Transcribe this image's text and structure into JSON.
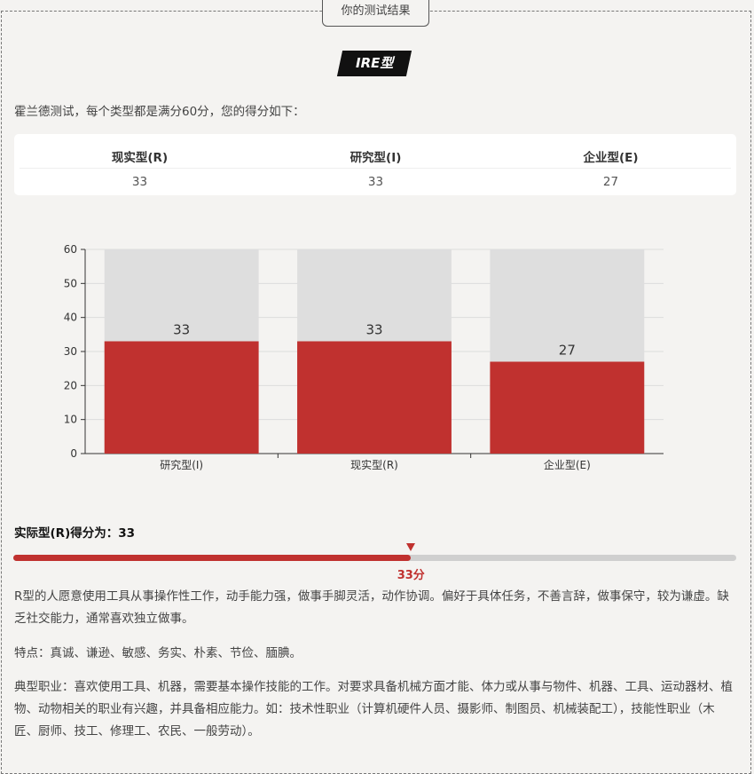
{
  "header": {
    "tab_label": "你的测试结果",
    "type_badge": "IRE型"
  },
  "intro": "霍兰德测试，每个类型都是满分60分，您的得分如下：",
  "score_table": {
    "headers": [
      "现实型(R)",
      "研究型(I)",
      "企业型(E)"
    ],
    "values": [
      "33",
      "33",
      "27"
    ]
  },
  "chart_data": {
    "type": "bar",
    "categories": [
      "研究型(I)",
      "现实型(R)",
      "企业型(E)"
    ],
    "values": [
      33,
      33,
      27
    ],
    "max_value": 60,
    "ylim": [
      0,
      60
    ],
    "yticks": [
      0,
      10,
      20,
      30,
      40,
      50,
      60
    ],
    "grid": true,
    "colors": {
      "bar": "#c0312f",
      "background_bar": "#dedede"
    }
  },
  "result": {
    "title": "实际型(R)得分为：33",
    "progress": 0.55,
    "progress_label": "33分"
  },
  "description": {
    "p1": "R型的人愿意使用工具从事操作性工作，动手能力强，做事手脚灵活，动作协调。偏好于具体任务，不善言辞，做事保守，较为谦虚。缺乏社交能力，通常喜欢独立做事。",
    "p2": "特点：真诚、谦逊、敏感、务实、朴素、节俭、腼腆。",
    "p3": "典型职业：喜欢使用工具、机器，需要基本操作技能的工作。对要求具备机械方面才能、体力或从事与物件、机器、工具、运动器材、植物、动物相关的职业有兴趣，并具备相应能力。如：技术性职业（计算机硬件人员、摄影师、制图员、机械装配工），技能性职业（木匠、厨师、技工、修理工、农民、一般劳动）。"
  }
}
